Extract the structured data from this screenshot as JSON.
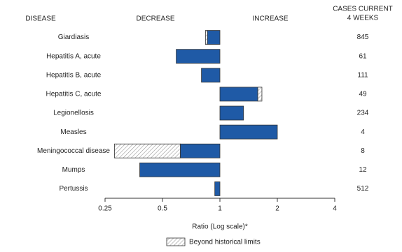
{
  "chart_data": {
    "type": "bar",
    "orientation": "horizontal",
    "log_scale": true,
    "headers": {
      "disease": "DISEASE",
      "decrease": "DECREASE",
      "increase": "INCREASE",
      "cases": [
        "CASES CURRENT",
        "4 WEEKS"
      ]
    },
    "categories": [
      "Giardiasis",
      "Hepatitis A, acute",
      "Hepatitis B, acute",
      "Hepatitis C, acute",
      "Legionellosis",
      "Measles",
      "Meningococcal disease",
      "Mumps",
      "Pertussis"
    ],
    "values": [
      0.84,
      0.59,
      0.8,
      1.66,
      1.33,
      2.0,
      0.28,
      0.38,
      0.94
    ],
    "historical_limit": [
      0.86,
      null,
      null,
      1.58,
      null,
      null,
      0.62,
      null,
      null
    ],
    "cases": [
      845,
      61,
      111,
      49,
      234,
      4,
      8,
      12,
      512
    ],
    "color": "#1f5aa6",
    "beyond_color": "#999999",
    "xlim": [
      0.25,
      4
    ],
    "xticks": [
      0.25,
      0.5,
      1,
      2,
      4
    ],
    "xlabel": "Ratio (Log scale)*",
    "legend": "Beyond historical limits"
  }
}
